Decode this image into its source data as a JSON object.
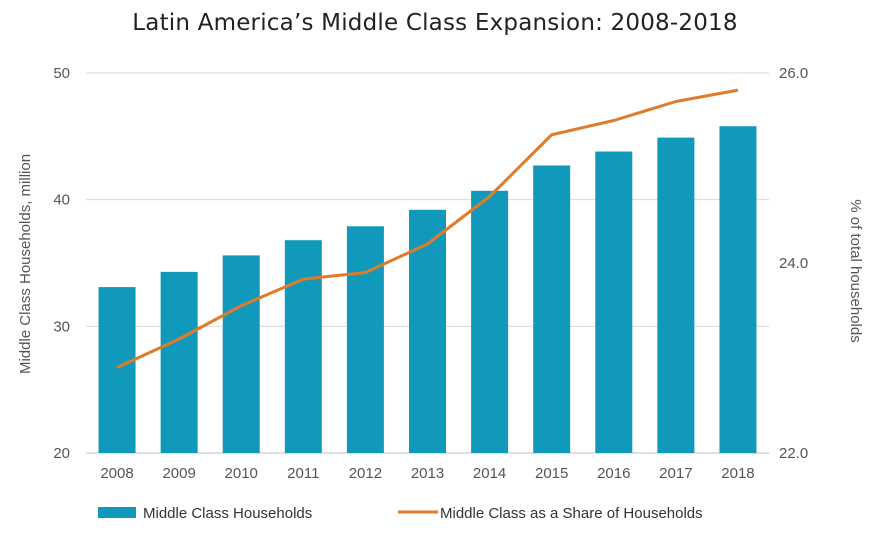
{
  "chart_data": {
    "type": "bar",
    "title": "Latin America’s Middle Class Expansion: 2008-2018",
    "categories": [
      "2008",
      "2009",
      "2010",
      "2011",
      "2012",
      "2013",
      "2014",
      "2015",
      "2016",
      "2017",
      "2018"
    ],
    "series": [
      {
        "name": "Middle Class Households",
        "type": "bar",
        "axis": "left",
        "color": "#1199bb",
        "values": [
          33.1,
          34.3,
          35.6,
          36.8,
          37.9,
          39.2,
          40.7,
          42.7,
          43.8,
          44.9,
          45.8
        ]
      },
      {
        "name": "Middle Class as a Share of Households",
        "type": "line",
        "axis": "right",
        "color": "#e07b2a",
        "values": [
          22.9,
          23.2,
          23.55,
          23.83,
          23.9,
          24.2,
          24.7,
          25.35,
          25.5,
          25.7,
          25.82
        ]
      }
    ],
    "y_left": {
      "label": "Middle Class Households, million",
      "lim": [
        20,
        50
      ],
      "ticks": [
        "20",
        "30",
        "40",
        "50"
      ]
    },
    "y_right": {
      "label": "% of total households",
      "lim": [
        22.0,
        26.0
      ],
      "ticks": [
        "22.0",
        "24.0",
        "26.0"
      ]
    },
    "grid": true,
    "legend_position": "bottom"
  }
}
